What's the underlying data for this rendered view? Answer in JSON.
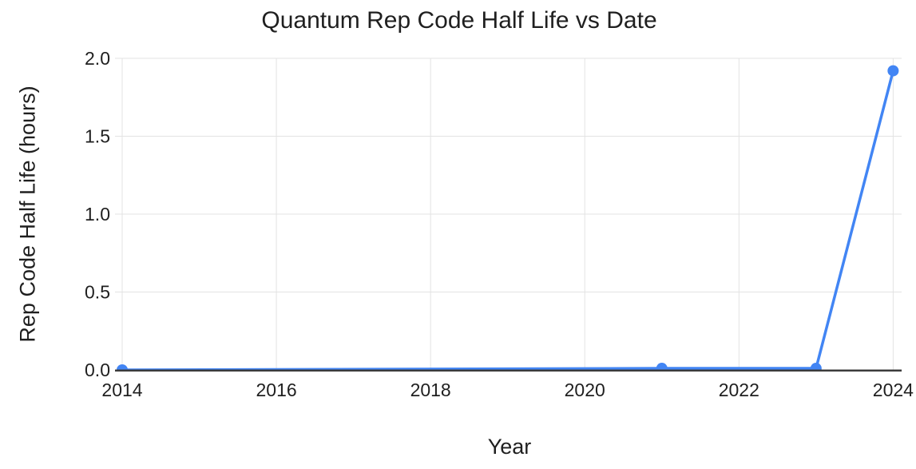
{
  "chart": {
    "title": "Quantum Rep Code Half Life vs Date",
    "x_axis_title": "Year",
    "y_axis_title": "Rep Code Half Life (hours)"
  },
  "chart_data": {
    "type": "line",
    "title": "Quantum Rep Code Half Life vs Date",
    "xlabel": "Year",
    "ylabel": "Rep Code Half Life (hours)",
    "x": [
      2014,
      2021,
      2023,
      2024
    ],
    "values": [
      0.0,
      0.01,
      0.01,
      1.92
    ],
    "series": [
      {
        "name": "Rep Code Half Life",
        "x": [
          2014,
          2021,
          2023,
          2024
        ],
        "values": [
          0.0,
          0.01,
          0.01,
          1.92
        ]
      }
    ],
    "x_ticks": [
      2014,
      2016,
      2018,
      2020,
      2022,
      2024
    ],
    "x_tick_labels": [
      "2014",
      "2016",
      "2018",
      "2020",
      "2022",
      "2024"
    ],
    "y_ticks": [
      0.0,
      0.5,
      1.0,
      1.5,
      2.0
    ],
    "y_tick_labels": [
      "0.0",
      "0.5",
      "1.0",
      "1.5",
      "2.0"
    ],
    "xlim": [
      2014,
      2024.11
    ],
    "ylim": [
      0,
      2.0
    ],
    "grid": true,
    "legend_position": "none",
    "colors": {
      "series": "#4285f4",
      "gridline": "#e3e3e3",
      "axis_line": "#3c3c3c",
      "text": "#1f1f1f",
      "background": "#ffffff"
    }
  }
}
